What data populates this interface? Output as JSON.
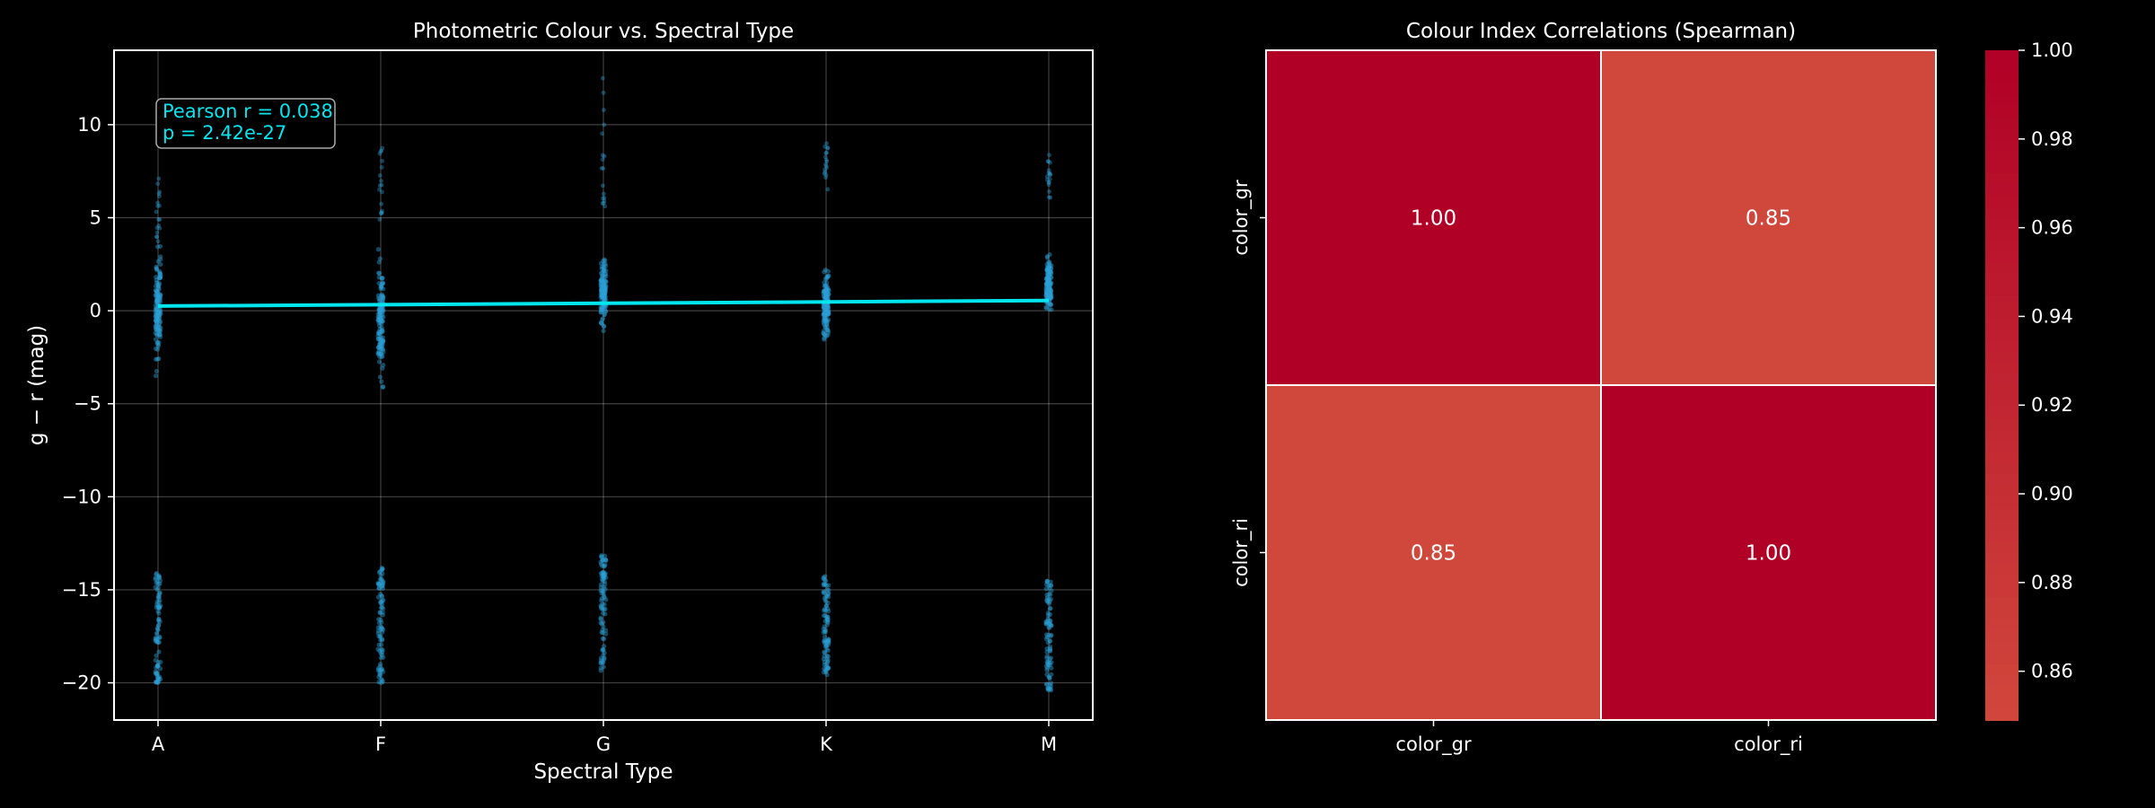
{
  "colors": {
    "background": "#000000",
    "points": "#2a9fd6",
    "fit_line": "#00e5ee",
    "annotation": "#00e5ee",
    "heat_high": "#b10026",
    "heat_low": "#d0473c"
  },
  "chart_data": [
    {
      "type": "scatter",
      "title": "Photometric Colour vs. Spectral Type",
      "xlabel": "Spectral Type",
      "ylabel": "g − r (mag)",
      "categories": [
        "A",
        "F",
        "G",
        "K",
        "M"
      ],
      "ylim": [
        -22,
        14
      ],
      "yticks": [
        10,
        5,
        0,
        -5,
        -10,
        -15,
        -20
      ],
      "ytick_labels": [
        "10",
        "5",
        "0",
        "−5",
        "−10",
        "−15",
        "−20"
      ],
      "grid": true,
      "annotation": [
        "Pearson r = 0.038",
        "p = 2.42e-27"
      ],
      "fit_line": {
        "x": [
          "A",
          "M"
        ],
        "y": [
          0.25,
          0.55
        ]
      },
      "clusters": [
        {
          "category": "A",
          "upper": [
            -3.5,
            3.5
          ],
          "sparse_upper": [
            7.4
          ],
          "lower": [
            -20.0,
            -14.0
          ]
        },
        {
          "category": "F",
          "upper": [
            -4.5,
            3.3
          ],
          "sparse_upper": [
            4.5,
            9.5
          ],
          "lower": [
            -20.0,
            -13.8
          ]
        },
        {
          "category": "G",
          "upper": [
            -1.2,
            3.2
          ],
          "sparse_upper": [
            5.5,
            12.5
          ],
          "lower": [
            -19.5,
            -13.0
          ]
        },
        {
          "category": "K",
          "upper": [
            -2.0,
            2.6
          ],
          "sparse_upper": [
            6.5,
            9.0
          ],
          "lower": [
            -19.8,
            -14.2
          ]
        },
        {
          "category": "M",
          "upper": [
            -0.5,
            3.3
          ],
          "sparse_upper": [
            6.0,
            8.5
          ],
          "lower": [
            -20.5,
            -14.5
          ]
        }
      ]
    },
    {
      "type": "heatmap",
      "title": "Colour Index Correlations (Spearman)",
      "rows": [
        "color_gr",
        "color_ri"
      ],
      "columns": [
        "color_gr",
        "color_ri"
      ],
      "values": [
        [
          1.0,
          0.85
        ],
        [
          0.85,
          1.0
        ]
      ],
      "cell_labels": [
        [
          "1.00",
          "0.85"
        ],
        [
          "0.85",
          "1.00"
        ]
      ],
      "colorbar": {
        "range": [
          0.849,
          1.0
        ],
        "ticks": [
          1.0,
          0.98,
          0.96,
          0.94,
          0.92,
          0.9,
          0.88,
          0.86
        ],
        "tick_labels": [
          "1.00",
          "0.98",
          "0.96",
          "0.94",
          "0.92",
          "0.90",
          "0.88",
          "0.86"
        ]
      }
    }
  ]
}
